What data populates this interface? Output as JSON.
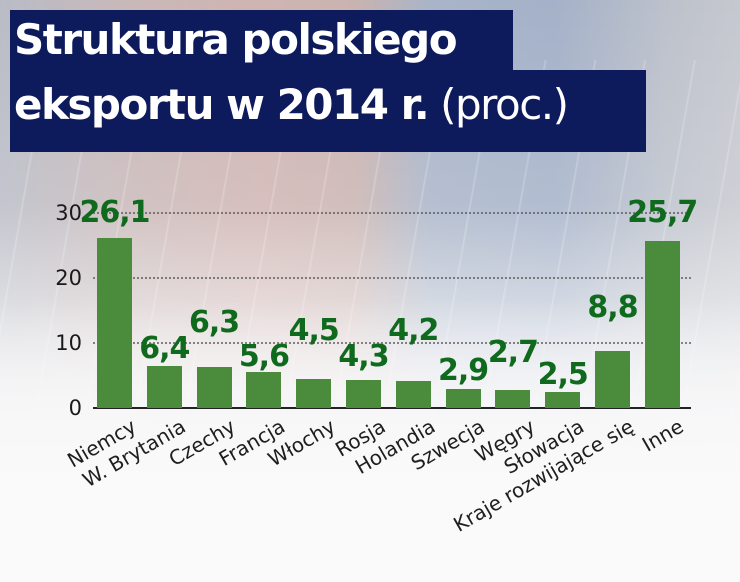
{
  "title": {
    "line1": "Struktura polskiego",
    "line2_bold": "eksportu w 2014 r.",
    "line2_light": " (proc.)"
  },
  "colors": {
    "title_bg": "#0d1a5c",
    "title_text": "#ffffff",
    "bar": "#4a8c3c",
    "value_label": "#0f6a1e"
  },
  "chart_data": {
    "type": "bar",
    "title": "Struktura polskiego eksportu w 2014 r. (proc.)",
    "xlabel": "",
    "ylabel": "",
    "ylim": [
      0,
      30
    ],
    "yticks": [
      0,
      10,
      20,
      30
    ],
    "grid": true,
    "categories": [
      "Niemcy",
      "W. Brytania",
      "Czechy",
      "Francja",
      "Włochy",
      "Rosja",
      "Holandia",
      "Szwecja",
      "Węgry",
      "Słowacja",
      "Kraje rozwijające się",
      "Inne"
    ],
    "values": [
      26.1,
      6.4,
      6.3,
      5.6,
      4.5,
      4.3,
      4.2,
      2.9,
      2.7,
      2.5,
      8.8,
      25.7
    ],
    "value_labels": [
      "26,1",
      "6,4",
      "6,3",
      "5,6",
      "4,5",
      "4,3",
      "4,2",
      "2,9",
      "2,7",
      "2,5",
      "8,8",
      "25,7"
    ],
    "ytick_labels": [
      "0",
      "10",
      "20",
      "30"
    ]
  }
}
